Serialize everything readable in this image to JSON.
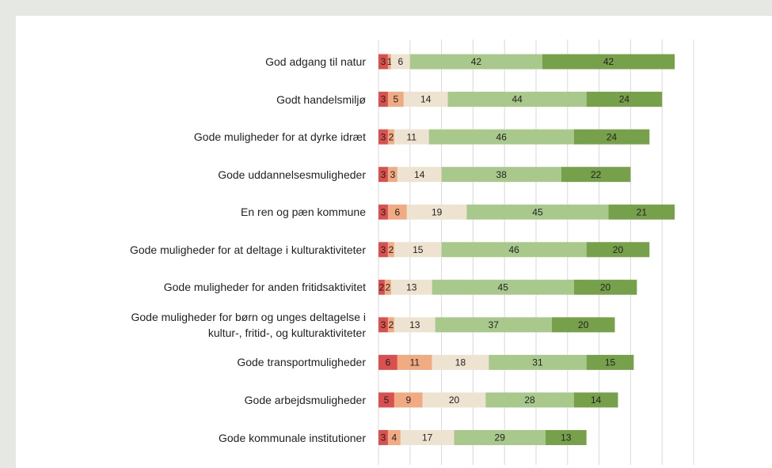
{
  "chart_data": {
    "type": "stacked_bar_horizontal",
    "categories": [
      "God adgang til natur",
      "Godt handelsmiljø",
      "Gode muligheder for at dyrke idræt",
      "Gode uddannelsesmuligheder",
      "En ren og pæn kommune",
      "Gode muligheder for at deltage i kulturaktiviteter",
      "Gode muligheder for anden fritidsaktivitet",
      "Gode muligheder for børn og unges deltagelse i\nkultur-, fritid-, og kulturaktiviteter",
      "Gode transportmuligheder",
      "Gode arbejdsmuligheder",
      "Gode kommunale institutioner"
    ],
    "series": [
      {
        "color": "#d9504e",
        "values": [
          3,
          3,
          3,
          3,
          3,
          3,
          2,
          3,
          6,
          5,
          3
        ]
      },
      {
        "color": "#f0ab82",
        "values": [
          1,
          5,
          2,
          3,
          6,
          2,
          2,
          2,
          11,
          9,
          4
        ]
      },
      {
        "color": "#ede3d0",
        "values": [
          6,
          14,
          11,
          14,
          19,
          15,
          13,
          13,
          18,
          20,
          17
        ]
      },
      {
        "color": "#a9c98c",
        "values": [
          42,
          44,
          46,
          38,
          45,
          46,
          45,
          37,
          31,
          28,
          29
        ]
      },
      {
        "color": "#76a04a",
        "values": [
          42,
          24,
          24,
          22,
          21,
          20,
          20,
          20,
          15,
          14,
          13
        ]
      }
    ],
    "xlim": [
      0,
      100
    ],
    "xticks": [
      0,
      10,
      20,
      30,
      40,
      50,
      60,
      70,
      80,
      90,
      100
    ],
    "grid": true
  }
}
